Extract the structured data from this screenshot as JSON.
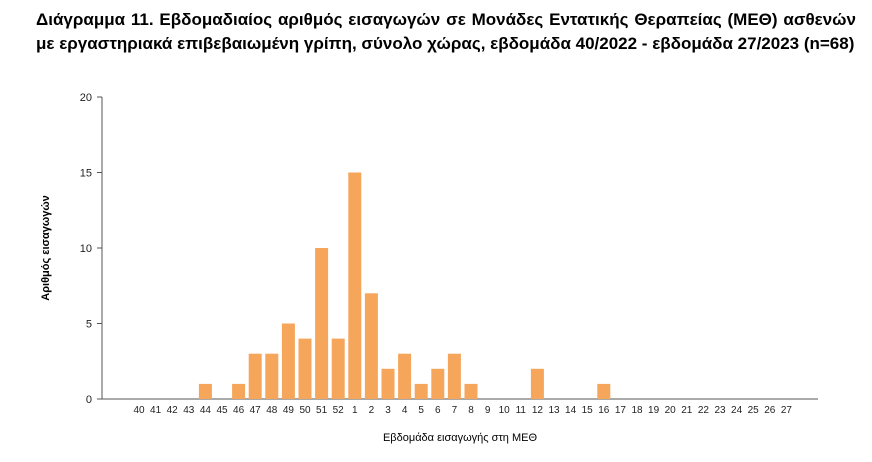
{
  "title": "Διάγραμμα 11. Εβδομαδιαίος αριθμός εισαγωγών σε Μονάδες Εντατικής Θεραπείας (ΜΕΘ) ασθενών με εργαστηριακά επιβεβαιωμένη γρίπη, σύνολο χώρας, εβδομάδα 40/2022 - εβδομάδα 27/2023 (n=68)",
  "chart_data": {
    "type": "bar",
    "xlabel": "Εβδομάδα εισαγωγής στη ΜΕΘ",
    "ylabel": "Αριθμός εισαγωγών",
    "ylim": [
      0,
      20
    ],
    "yticks": [
      0,
      5,
      10,
      15,
      20
    ],
    "grid": false,
    "bar_color": "#f5a65b",
    "categories": [
      "40",
      "41",
      "42",
      "43",
      "44",
      "45",
      "46",
      "47",
      "48",
      "49",
      "50",
      "51",
      "52",
      "1",
      "2",
      "3",
      "4",
      "5",
      "6",
      "7",
      "8",
      "9",
      "10",
      "11",
      "12",
      "13",
      "14",
      "15",
      "16",
      "17",
      "18",
      "19",
      "20",
      "21",
      "22",
      "23",
      "24",
      "25",
      "26",
      "27"
    ],
    "values": [
      0,
      0,
      0,
      0,
      1,
      0,
      1,
      3,
      3,
      5,
      4,
      10,
      4,
      15,
      7,
      2,
      3,
      1,
      2,
      3,
      1,
      0,
      0,
      0,
      2,
      0,
      0,
      0,
      1,
      0,
      0,
      0,
      0,
      0,
      0,
      0,
      0,
      0,
      0,
      0
    ]
  }
}
